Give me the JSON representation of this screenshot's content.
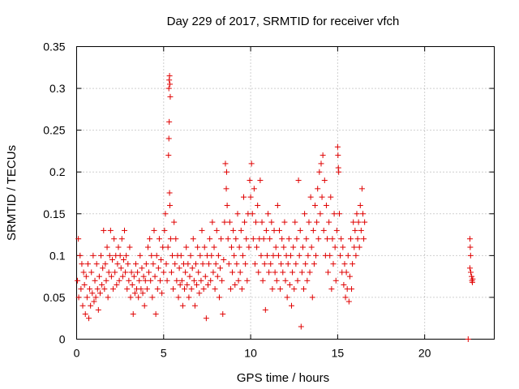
{
  "chart_data": {
    "type": "scatter",
    "title": "Day 229 of 2017, SRMTID for receiver vfch",
    "xlabel": "GPS time / hours",
    "ylabel": "SRMTID / TECUs",
    "xlim": [
      0,
      24
    ],
    "ylim": [
      0,
      0.35
    ],
    "xticks": [
      0,
      5,
      10,
      15,
      20
    ],
    "yticks": [
      0,
      0.05,
      0.1,
      0.15,
      0.2,
      0.25,
      0.3,
      0.35
    ],
    "ytick_labels": [
      "0",
      "0.05",
      "0.1",
      "0.15",
      "0.2",
      "0.25",
      "0.3",
      "0.35"
    ],
    "grid": true,
    "marker": "+",
    "color": "#e00000",
    "points": [
      [
        0.05,
        0.07
      ],
      [
        0.1,
        0.12
      ],
      [
        0.12,
        0.05
      ],
      [
        0.2,
        0.1
      ],
      [
        0.25,
        0.06
      ],
      [
        0.3,
        0.09
      ],
      [
        0.35,
        0.04
      ],
      [
        0.4,
        0.08
      ],
      [
        0.45,
        0.065
      ],
      [
        0.5,
        0.03
      ],
      [
        0.55,
        0.075
      ],
      [
        0.6,
        0.05
      ],
      [
        0.65,
        0.09
      ],
      [
        0.7,
        0.025
      ],
      [
        0.75,
        0.06
      ],
      [
        0.8,
        0.04
      ],
      [
        0.85,
        0.08
      ],
      [
        0.9,
        0.055
      ],
      [
        0.95,
        0.1
      ],
      [
        1.0,
        0.045
      ],
      [
        1.05,
        0.07
      ],
      [
        1.1,
        0.05
      ],
      [
        1.15,
        0.09
      ],
      [
        1.2,
        0.06
      ],
      [
        1.25,
        0.035
      ],
      [
        1.3,
        0.075
      ],
      [
        1.35,
        0.055
      ],
      [
        1.4,
        0.1
      ],
      [
        1.45,
        0.065
      ],
      [
        1.5,
        0.085
      ],
      [
        1.55,
        0.13
      ],
      [
        1.6,
        0.06
      ],
      [
        1.65,
        0.09
      ],
      [
        1.7,
        0.07
      ],
      [
        1.75,
        0.11
      ],
      [
        1.8,
        0.05
      ],
      [
        1.85,
        0.08
      ],
      [
        1.9,
        0.1
      ],
      [
        1.95,
        0.13
      ],
      [
        2.0,
        0.075
      ],
      [
        2.05,
        0.095
      ],
      [
        2.1,
        0.06
      ],
      [
        2.15,
        0.12
      ],
      [
        2.2,
        0.08
      ],
      [
        2.25,
        0.1
      ],
      [
        2.3,
        0.065
      ],
      [
        2.35,
        0.09
      ],
      [
        2.4,
        0.11
      ],
      [
        2.45,
        0.07
      ],
      [
        2.5,
        0.1
      ],
      [
        2.55,
        0.085
      ],
      [
        2.6,
        0.12
      ],
      [
        2.65,
        0.075
      ],
      [
        2.7,
        0.095
      ],
      [
        2.75,
        0.13
      ],
      [
        2.8,
        0.08
      ],
      [
        2.85,
        0.1
      ],
      [
        2.9,
        0.06
      ],
      [
        2.95,
        0.09
      ],
      [
        3.0,
        0.07
      ],
      [
        3.05,
        0.11
      ],
      [
        3.1,
        0.05
      ],
      [
        3.15,
        0.08
      ],
      [
        3.2,
        0.065
      ],
      [
        3.25,
        0.03
      ],
      [
        3.3,
        0.075
      ],
      [
        3.35,
        0.055
      ],
      [
        3.4,
        0.09
      ],
      [
        3.45,
        0.06
      ],
      [
        3.5,
        0.08
      ],
      [
        3.55,
        0.05
      ],
      [
        3.6,
        0.07
      ],
      [
        3.65,
        0.1
      ],
      [
        3.7,
        0.06
      ],
      [
        3.75,
        0.085
      ],
      [
        3.8,
        0.055
      ],
      [
        3.85,
        0.075
      ],
      [
        3.9,
        0.04
      ],
      [
        3.95,
        0.07
      ],
      [
        4.0,
        0.09
      ],
      [
        4.05,
        0.06
      ],
      [
        4.1,
        0.11
      ],
      [
        4.15,
        0.08
      ],
      [
        4.2,
        0.12
      ],
      [
        4.25,
        0.07
      ],
      [
        4.3,
        0.1
      ],
      [
        4.35,
        0.05
      ],
      [
        4.4,
        0.09
      ],
      [
        4.45,
        0.13
      ],
      [
        4.5,
        0.075
      ],
      [
        4.55,
        0.03
      ],
      [
        4.6,
        0.1
      ],
      [
        4.65,
        0.06
      ],
      [
        4.7,
        0.085
      ],
      [
        4.75,
        0.12
      ],
      [
        4.8,
        0.07
      ],
      [
        4.85,
        0.095
      ],
      [
        4.9,
        0.055
      ],
      [
        4.95,
        0.11
      ],
      [
        5.0,
        0.08
      ],
      [
        5.05,
        0.13
      ],
      [
        5.1,
        0.15
      ],
      [
        5.15,
        0.09
      ],
      [
        5.2,
        0.07
      ],
      [
        5.25,
        0.11
      ],
      [
        5.3,
        0.3
      ],
      [
        5.32,
        0.31
      ],
      [
        5.34,
        0.315
      ],
      [
        5.36,
        0.305
      ],
      [
        5.38,
        0.29
      ],
      [
        5.3,
        0.24
      ],
      [
        5.32,
        0.26
      ],
      [
        5.28,
        0.22
      ],
      [
        5.34,
        0.175
      ],
      [
        5.36,
        0.16
      ],
      [
        5.4,
        0.12
      ],
      [
        5.45,
        0.08
      ],
      [
        5.5,
        0.1
      ],
      [
        5.55,
        0.06
      ],
      [
        5.6,
        0.14
      ],
      [
        5.65,
        0.09
      ],
      [
        5.7,
        0.12
      ],
      [
        5.75,
        0.07
      ],
      [
        5.8,
        0.1
      ],
      [
        5.85,
        0.05
      ],
      [
        5.9,
        0.085
      ],
      [
        5.95,
        0.065
      ],
      [
        6.0,
        0.1
      ],
      [
        6.05,
        0.07
      ],
      [
        6.1,
        0.04
      ],
      [
        6.15,
        0.09
      ],
      [
        6.2,
        0.06
      ],
      [
        6.25,
        0.08
      ],
      [
        6.3,
        0.11
      ],
      [
        6.35,
        0.065
      ],
      [
        6.4,
        0.09
      ],
      [
        6.45,
        0.05
      ],
      [
        6.5,
        0.075
      ],
      [
        6.55,
        0.1
      ],
      [
        6.6,
        0.06
      ],
      [
        6.65,
        0.085
      ],
      [
        6.7,
        0.12
      ],
      [
        6.75,
        0.07
      ],
      [
        6.8,
        0.04
      ],
      [
        6.85,
        0.09
      ],
      [
        6.9,
        0.065
      ],
      [
        6.95,
        0.11
      ],
      [
        7.0,
        0.08
      ],
      [
        7.05,
        0.055
      ],
      [
        7.1,
        0.1
      ],
      [
        7.15,
        0.07
      ],
      [
        7.2,
        0.13
      ],
      [
        7.25,
        0.09
      ],
      [
        7.3,
        0.06
      ],
      [
        7.35,
        0.11
      ],
      [
        7.4,
        0.075
      ],
      [
        7.45,
        0.025
      ],
      [
        7.5,
        0.1
      ],
      [
        7.55,
        0.065
      ],
      [
        7.6,
        0.09
      ],
      [
        7.65,
        0.12
      ],
      [
        7.7,
        0.07
      ],
      [
        7.75,
        0.1
      ],
      [
        7.8,
        0.14
      ],
      [
        7.85,
        0.08
      ],
      [
        7.9,
        0.11
      ],
      [
        7.95,
        0.06
      ],
      [
        8.0,
        0.09
      ],
      [
        8.05,
        0.13
      ],
      [
        8.1,
        0.075
      ],
      [
        8.15,
        0.1
      ],
      [
        8.2,
        0.05
      ],
      [
        8.25,
        0.085
      ],
      [
        8.3,
        0.12
      ],
      [
        8.35,
        0.07
      ],
      [
        8.4,
        0.03
      ],
      [
        8.45,
        0.095
      ],
      [
        8.5,
        0.14
      ],
      [
        8.55,
        0.21
      ],
      [
        8.6,
        0.18
      ],
      [
        8.62,
        0.2
      ],
      [
        8.65,
        0.16
      ],
      [
        8.7,
        0.12
      ],
      [
        8.75,
        0.09
      ],
      [
        8.8,
        0.14
      ],
      [
        8.85,
        0.06
      ],
      [
        8.9,
        0.11
      ],
      [
        8.95,
        0.08
      ],
      [
        9.0,
        0.13
      ],
      [
        9.05,
        0.1
      ],
      [
        9.1,
        0.065
      ],
      [
        9.15,
        0.12
      ],
      [
        9.2,
        0.09
      ],
      [
        9.25,
        0.15
      ],
      [
        9.3,
        0.07
      ],
      [
        9.35,
        0.11
      ],
      [
        9.4,
        0.08
      ],
      [
        9.45,
        0.13
      ],
      [
        9.5,
        0.06
      ],
      [
        9.55,
        0.1
      ],
      [
        9.6,
        0.17
      ],
      [
        9.65,
        0.14
      ],
      [
        9.7,
        0.09
      ],
      [
        9.75,
        0.12
      ],
      [
        9.8,
        0.07
      ],
      [
        9.85,
        0.15
      ],
      [
        9.9,
        0.11
      ],
      [
        9.95,
        0.19
      ],
      [
        10.0,
        0.17
      ],
      [
        10.05,
        0.21
      ],
      [
        10.1,
        0.15
      ],
      [
        10.15,
        0.12
      ],
      [
        10.2,
        0.18
      ],
      [
        10.25,
        0.09
      ],
      [
        10.3,
        0.14
      ],
      [
        10.35,
        0.11
      ],
      [
        10.4,
        0.16
      ],
      [
        10.45,
        0.08
      ],
      [
        10.5,
        0.12
      ],
      [
        10.55,
        0.19
      ],
      [
        10.6,
        0.1
      ],
      [
        10.65,
        0.14
      ],
      [
        10.7,
        0.07
      ],
      [
        10.75,
        0.12
      ],
      [
        10.8,
        0.09
      ],
      [
        10.85,
        0.035
      ],
      [
        10.9,
        0.13
      ],
      [
        10.95,
        0.1
      ],
      [
        11.0,
        0.15
      ],
      [
        11.05,
        0.08
      ],
      [
        11.1,
        0.12
      ],
      [
        11.15,
        0.09
      ],
      [
        11.2,
        0.14
      ],
      [
        11.25,
        0.06
      ],
      [
        11.3,
        0.1
      ],
      [
        11.35,
        0.13
      ],
      [
        11.4,
        0.08
      ],
      [
        11.45,
        0.11
      ],
      [
        11.5,
        0.07
      ],
      [
        11.55,
        0.16
      ],
      [
        11.6,
        0.1
      ],
      [
        11.65,
        0.13
      ],
      [
        11.7,
        0.06
      ],
      [
        11.75,
        0.09
      ],
      [
        11.8,
        0.12
      ],
      [
        11.85,
        0.08
      ],
      [
        11.9,
        0.11
      ],
      [
        11.95,
        0.14
      ],
      [
        12.0,
        0.07
      ],
      [
        12.05,
        0.1
      ],
      [
        12.1,
        0.05
      ],
      [
        12.15,
        0.09
      ],
      [
        12.2,
        0.12
      ],
      [
        12.25,
        0.065
      ],
      [
        12.3,
        0.1
      ],
      [
        12.35,
        0.04
      ],
      [
        12.4,
        0.08
      ],
      [
        12.45,
        0.11
      ],
      [
        12.5,
        0.06
      ],
      [
        12.55,
        0.14
      ],
      [
        12.6,
        0.09
      ],
      [
        12.65,
        0.12
      ],
      [
        12.7,
        0.07
      ],
      [
        12.75,
        0.19
      ],
      [
        12.8,
        0.1
      ],
      [
        12.85,
        0.13
      ],
      [
        12.9,
        0.015
      ],
      [
        12.95,
        0.08
      ],
      [
        13.0,
        0.11
      ],
      [
        13.05,
        0.06
      ],
      [
        13.1,
        0.15
      ],
      [
        13.15,
        0.09
      ],
      [
        13.2,
        0.12
      ],
      [
        13.25,
        0.07
      ],
      [
        13.3,
        0.1
      ],
      [
        13.35,
        0.14
      ],
      [
        13.4,
        0.08
      ],
      [
        13.45,
        0.17
      ],
      [
        13.5,
        0.11
      ],
      [
        13.55,
        0.05
      ],
      [
        13.6,
        0.13
      ],
      [
        13.65,
        0.09
      ],
      [
        13.7,
        0.16
      ],
      [
        13.75,
        0.1
      ],
      [
        13.8,
        0.14
      ],
      [
        13.85,
        0.18
      ],
      [
        13.9,
        0.12
      ],
      [
        13.95,
        0.2
      ],
      [
        14.0,
        0.15
      ],
      [
        14.05,
        0.21
      ],
      [
        14.1,
        0.17
      ],
      [
        14.15,
        0.22
      ],
      [
        14.2,
        0.13
      ],
      [
        14.25,
        0.19
      ],
      [
        14.3,
        0.1
      ],
      [
        14.35,
        0.16
      ],
      [
        14.4,
        0.12
      ],
      [
        14.45,
        0.08
      ],
      [
        14.5,
        0.14
      ],
      [
        14.55,
        0.1
      ],
      [
        14.6,
        0.17
      ],
      [
        14.65,
        0.06
      ],
      [
        14.7,
        0.12
      ],
      [
        14.75,
        0.09
      ],
      [
        14.8,
        0.15
      ],
      [
        14.85,
        0.11
      ],
      [
        14.9,
        0.07
      ],
      [
        14.95,
        0.13
      ],
      [
        15.0,
        0.23
      ],
      [
        15.02,
        0.22
      ],
      [
        15.04,
        0.205
      ],
      [
        15.06,
        0.2
      ],
      [
        15.1,
        0.15
      ],
      [
        15.15,
        0.1
      ],
      [
        15.2,
        0.12
      ],
      [
        15.25,
        0.08
      ],
      [
        15.3,
        0.11
      ],
      [
        15.35,
        0.065
      ],
      [
        15.4,
        0.09
      ],
      [
        15.45,
        0.05
      ],
      [
        15.5,
        0.08
      ],
      [
        15.55,
        0.06
      ],
      [
        15.6,
        0.1
      ],
      [
        15.65,
        0.045
      ],
      [
        15.7,
        0.075
      ],
      [
        15.75,
        0.12
      ],
      [
        15.8,
        0.06
      ],
      [
        15.85,
        0.09
      ],
      [
        15.9,
        0.14
      ],
      [
        15.95,
        0.11
      ],
      [
        16.0,
        0.13
      ],
      [
        16.05,
        0.1
      ],
      [
        16.1,
        0.15
      ],
      [
        16.15,
        0.12
      ],
      [
        16.2,
        0.14
      ],
      [
        16.25,
        0.11
      ],
      [
        16.3,
        0.16
      ],
      [
        16.35,
        0.13
      ],
      [
        16.4,
        0.18
      ],
      [
        16.45,
        0.15
      ],
      [
        16.5,
        0.12
      ],
      [
        16.55,
        0.14
      ],
      [
        22.6,
        0.12
      ],
      [
        22.62,
        0.11
      ],
      [
        22.64,
        0.1
      ],
      [
        22.6,
        0.085
      ],
      [
        22.65,
        0.08
      ],
      [
        22.7,
        0.075
      ],
      [
        22.72,
        0.07
      ],
      [
        22.74,
        0.068
      ],
      [
        22.76,
        0.072
      ],
      [
        22.5,
        0.0
      ]
    ]
  }
}
